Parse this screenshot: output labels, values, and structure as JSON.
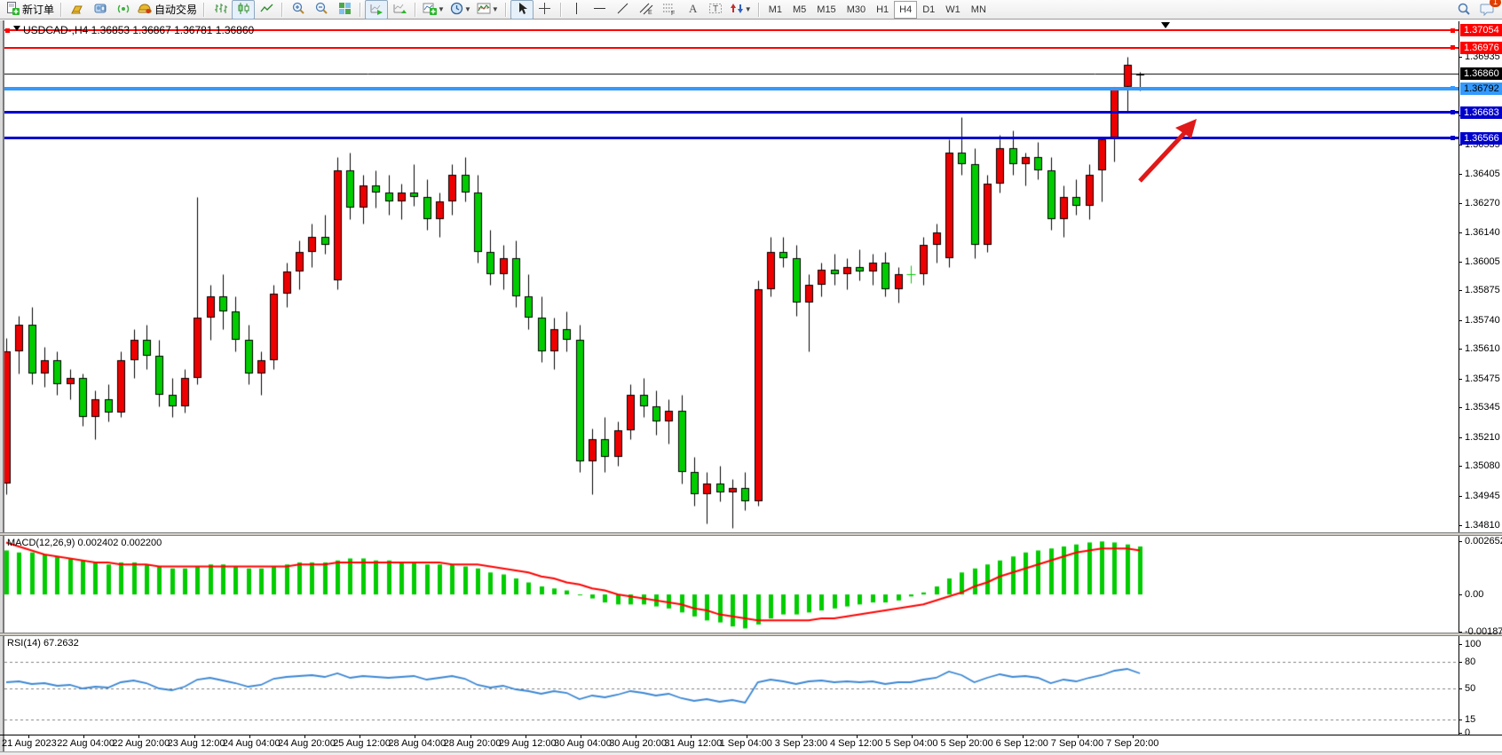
{
  "toolbar": {
    "new_order_label": "新订单",
    "auto_trading_label": "自动交易",
    "notification_count": "1",
    "icons": [
      "new-order-icon",
      "deposit-icon",
      "mailbox-icon",
      "signal-icon",
      "autotrade-icon",
      "bar-chart-icon",
      "candlestick-icon",
      "line-chart-icon",
      "zoom-in-icon",
      "zoom-out-icon",
      "tile-windows-icon",
      "auto-scroll-icon",
      "chart-shift-icon",
      "new-chart-icon",
      "period-icon",
      "template-icon",
      "cursor-icon",
      "crosshair-icon",
      "vertical-line-icon",
      "horizontal-line-icon",
      "trendline-icon",
      "channel-icon",
      "fibonacci-icon",
      "text-icon",
      "label-icon",
      "arrows-icon",
      "search-icon",
      "chat-icon"
    ],
    "timeframes": [
      "M1",
      "M5",
      "M15",
      "M30",
      "H1",
      "H4",
      "D1",
      "W1",
      "MN"
    ],
    "active_timeframe": "H4"
  },
  "chart": {
    "title": "USDCAD-,H4 1.36853 1.36867 1.36781 1.36860",
    "symbol": "USDCAD-",
    "period": "H4",
    "open": "1.36853",
    "high": "1.36867",
    "low": "1.36781",
    "close": "1.36860"
  },
  "macd": {
    "label": "MACD(12,26,9) 0.002402 0.002200",
    "axis_ticks": [
      "0.002652",
      "0.00",
      "-0.001879"
    ]
  },
  "rsi": {
    "label": "RSI(14) 67.2632",
    "axis_ticks": [
      "100",
      "80",
      "50",
      "15",
      "0"
    ],
    "levels": [
      80,
      50,
      15
    ]
  },
  "chart_data": {
    "type": "candlestick",
    "symbol": "USDCAD",
    "timeframe": "H4",
    "colors": {
      "up": "#ee0000",
      "down": "#00cc00",
      "wick": "#000000",
      "bid_line": "#000000",
      "macd_bar": "#00cc00",
      "macd_signal": "#ff0000",
      "rsi_line": "#3a86d4",
      "hline_red": "#ff0000",
      "hline_lightblue": "#3399ff",
      "hline_blue": "#0000cc"
    },
    "main": {
      "ylim": [
        1.34774,
        1.37096
      ],
      "bid": 1.3686,
      "y_ticks": [
        "1.36935",
        "1.36670",
        "1.36535",
        "1.36405",
        "1.36270",
        "1.36140",
        "1.36005",
        "1.35875",
        "1.35740",
        "1.35610",
        "1.35475",
        "1.35345",
        "1.35210",
        "1.35080",
        "1.34945",
        "1.34810"
      ]
    },
    "hlines": [
      {
        "price": 1.37054,
        "label": "1.37054",
        "color": "#ff0000",
        "text": "#ffffff",
        "thickness": 2
      },
      {
        "price": 1.36976,
        "label": "1.36976",
        "color": "#ff0000",
        "text": "#ffffff",
        "thickness": 2
      },
      {
        "price": 1.36792,
        "label": "1.36792",
        "color": "#3399ff",
        "text": "#000000",
        "thickness": 4
      },
      {
        "price": 1.36683,
        "label": "1.36683",
        "color": "#0000cc",
        "text": "#ffffff",
        "thickness": 3
      },
      {
        "price": 1.36566,
        "label": "1.36566",
        "color": "#0000cc",
        "text": "#ffffff",
        "thickness": 3
      }
    ],
    "bid_label": "1.36860",
    "candles": [
      [
        1.35,
        1.3566,
        1.3495,
        1.356
      ],
      [
        1.356,
        1.3576,
        1.355,
        1.3572
      ],
      [
        1.3572,
        1.358,
        1.3545,
        1.355
      ],
      [
        1.355,
        1.3562,
        1.3544,
        1.3556
      ],
      [
        1.3556,
        1.356,
        1.354,
        1.3545
      ],
      [
        1.3545,
        1.3552,
        1.3538,
        1.3548
      ],
      [
        1.3548,
        1.355,
        1.3526,
        1.353
      ],
      [
        1.353,
        1.3542,
        1.352,
        1.3538
      ],
      [
        1.3538,
        1.3545,
        1.3528,
        1.3532
      ],
      [
        1.3532,
        1.356,
        1.353,
        1.3556
      ],
      [
        1.3556,
        1.357,
        1.3548,
        1.3565
      ],
      [
        1.3565,
        1.3572,
        1.3552,
        1.3558
      ],
      [
        1.3558,
        1.3565,
        1.3535,
        1.354
      ],
      [
        1.354,
        1.3548,
        1.353,
        1.3535
      ],
      [
        1.3535,
        1.3552,
        1.3532,
        1.3548
      ],
      [
        1.3548,
        1.363,
        1.3545,
        1.3575
      ],
      [
        1.3575,
        1.359,
        1.3565,
        1.3585
      ],
      [
        1.3585,
        1.3595,
        1.357,
        1.3578
      ],
      [
        1.3578,
        1.3585,
        1.356,
        1.3565
      ],
      [
        1.3565,
        1.3572,
        1.3545,
        1.355
      ],
      [
        1.355,
        1.356,
        1.354,
        1.3556
      ],
      [
        1.3556,
        1.359,
        1.3552,
        1.3586
      ],
      [
        1.3586,
        1.36,
        1.358,
        1.3596
      ],
      [
        1.3596,
        1.361,
        1.3588,
        1.3605
      ],
      [
        1.3605,
        1.3618,
        1.3598,
        1.3612
      ],
      [
        1.3612,
        1.3622,
        1.3604,
        1.3608
      ],
      [
        1.3592,
        1.3648,
        1.3588,
        1.3642
      ],
      [
        1.3642,
        1.365,
        1.362,
        1.3625
      ],
      [
        1.3625,
        1.364,
        1.3618,
        1.3635
      ],
      [
        1.3635,
        1.3642,
        1.3625,
        1.3632
      ],
      [
        1.3632,
        1.364,
        1.3622,
        1.3628
      ],
      [
        1.3628,
        1.3636,
        1.362,
        1.3632
      ],
      [
        1.3632,
        1.3645,
        1.3626,
        1.363
      ],
      [
        1.363,
        1.3638,
        1.3615,
        1.362
      ],
      [
        1.362,
        1.3632,
        1.3612,
        1.3628
      ],
      [
        1.3628,
        1.3645,
        1.3622,
        1.364
      ],
      [
        1.364,
        1.3648,
        1.3628,
        1.3632
      ],
      [
        1.3632,
        1.364,
        1.36,
        1.3605
      ],
      [
        1.3605,
        1.3615,
        1.359,
        1.3595
      ],
      [
        1.3595,
        1.3608,
        1.3588,
        1.3602
      ],
      [
        1.3602,
        1.361,
        1.358,
        1.3585
      ],
      [
        1.3585,
        1.3595,
        1.357,
        1.3575
      ],
      [
        1.3575,
        1.3585,
        1.3555,
        1.356
      ],
      [
        1.356,
        1.3575,
        1.3552,
        1.357
      ],
      [
        1.357,
        1.3578,
        1.356,
        1.3565
      ],
      [
        1.3565,
        1.3572,
        1.3505,
        1.351
      ],
      [
        1.351,
        1.3525,
        1.3495,
        1.352
      ],
      [
        1.352,
        1.353,
        1.3505,
        1.3512
      ],
      [
        1.3512,
        1.3528,
        1.3508,
        1.3524
      ],
      [
        1.3524,
        1.3545,
        1.352,
        1.354
      ],
      [
        1.354,
        1.3548,
        1.353,
        1.3535
      ],
      [
        1.3535,
        1.3542,
        1.3522,
        1.3528
      ],
      [
        1.3528,
        1.3538,
        1.3518,
        1.3533
      ],
      [
        1.3533,
        1.354,
        1.35,
        1.3505
      ],
      [
        1.3505,
        1.3512,
        1.349,
        1.3495
      ],
      [
        1.3495,
        1.3505,
        1.3482,
        1.35
      ],
      [
        1.35,
        1.3508,
        1.3492,
        1.3496
      ],
      [
        1.3496,
        1.3502,
        1.348,
        1.3498
      ],
      [
        1.3498,
        1.3505,
        1.3488,
        1.3492
      ],
      [
        1.3492,
        1.3592,
        1.349,
        1.3588
      ],
      [
        1.3588,
        1.3612,
        1.3585,
        1.3605
      ],
      [
        1.3605,
        1.3612,
        1.3598,
        1.3602
      ],
      [
        1.3602,
        1.3608,
        1.3576,
        1.3582
      ],
      [
        1.3582,
        1.3595,
        1.356,
        1.359
      ],
      [
        1.359,
        1.36,
        1.3585,
        1.3597
      ],
      [
        1.3597,
        1.3604,
        1.359,
        1.3595
      ],
      [
        1.3595,
        1.3602,
        1.3588,
        1.3598
      ],
      [
        1.3598,
        1.3606,
        1.3592,
        1.3596
      ],
      [
        1.3596,
        1.3604,
        1.359,
        1.36
      ],
      [
        1.36,
        1.3605,
        1.3585,
        1.3588
      ],
      [
        1.3588,
        1.3598,
        1.3582,
        1.3595
      ],
      [
        1.3595,
        1.3599,
        1.3591,
        1.3595
      ],
      [
        1.3595,
        1.3612,
        1.359,
        1.3608
      ],
      [
        1.3608,
        1.3618,
        1.36,
        1.3614
      ],
      [
        1.3602,
        1.3656,
        1.3598,
        1.365
      ],
      [
        1.365,
        1.3666,
        1.364,
        1.3645
      ],
      [
        1.3645,
        1.3652,
        1.3602,
        1.3608
      ],
      [
        1.3608,
        1.364,
        1.3605,
        1.3636
      ],
      [
        1.3636,
        1.3658,
        1.3632,
        1.3652
      ],
      [
        1.3652,
        1.366,
        1.364,
        1.3645
      ],
      [
        1.3645,
        1.365,
        1.3635,
        1.3648
      ],
      [
        1.3648,
        1.3655,
        1.3638,
        1.3642
      ],
      [
        1.3642,
        1.3648,
        1.3615,
        1.362
      ],
      [
        1.362,
        1.3635,
        1.3612,
        1.363
      ],
      [
        1.363,
        1.3638,
        1.3622,
        1.3626
      ],
      [
        1.3626,
        1.3645,
        1.362,
        1.364
      ],
      [
        1.3642,
        1.3657,
        1.3628,
        1.3656
      ],
      [
        1.3657,
        1.368,
        1.3646,
        1.3679
      ],
      [
        1.368,
        1.36935,
        1.3668,
        1.369
      ],
      [
        1.36853,
        1.36867,
        1.36781,
        1.3686
      ]
    ],
    "macd": {
      "ylim": [
        -0.00195,
        0.00293
      ],
      "hist": [
        0.0022,
        0.0021,
        0.0021,
        0.002,
        0.0019,
        0.0018,
        0.0017,
        0.0016,
        0.0015,
        0.0016,
        0.0016,
        0.0015,
        0.0014,
        0.0013,
        0.0013,
        0.0014,
        0.0015,
        0.0015,
        0.0014,
        0.0013,
        0.0013,
        0.0014,
        0.0015,
        0.0016,
        0.0016,
        0.0016,
        0.0017,
        0.0018,
        0.0018,
        0.0017,
        0.0017,
        0.0016,
        0.0016,
        0.0015,
        0.0015,
        0.0015,
        0.0014,
        0.0013,
        0.0011,
        0.001,
        0.0008,
        0.0006,
        0.0004,
        0.0003,
        0.0002,
        0.0,
        -0.0002,
        -0.0004,
        -0.0005,
        -0.0005,
        -0.0005,
        -0.0006,
        -0.0007,
        -0.0009,
        -0.0011,
        -0.0013,
        -0.0014,
        -0.0016,
        -0.0017,
        -0.0015,
        -0.0012,
        -0.001,
        -0.001,
        -0.0009,
        -0.0008,
        -0.0007,
        -0.0006,
        -0.0005,
        -0.0004,
        -0.0004,
        -0.0003,
        -0.0001,
        0.0001,
        0.0004,
        0.0008,
        0.0011,
        0.0013,
        0.0015,
        0.0017,
        0.0019,
        0.0021,
        0.0022,
        0.0023,
        0.0024,
        0.0025,
        0.0026,
        0.00265,
        0.0026,
        0.0025,
        0.0024
      ],
      "signal": [
        0.0026,
        0.0024,
        0.0022,
        0.002,
        0.0019,
        0.0018,
        0.0017,
        0.0016,
        0.0016,
        0.0015,
        0.0015,
        0.0015,
        0.0014,
        0.0014,
        0.0014,
        0.0014,
        0.0014,
        0.0014,
        0.0014,
        0.0014,
        0.0014,
        0.0014,
        0.0014,
        0.0015,
        0.0015,
        0.0015,
        0.0016,
        0.0016,
        0.0016,
        0.0016,
        0.0016,
        0.0016,
        0.0016,
        0.0016,
        0.0016,
        0.0015,
        0.0015,
        0.0015,
        0.0014,
        0.0013,
        0.0012,
        0.0011,
        0.0009,
        0.0008,
        0.0006,
        0.0005,
        0.0003,
        0.0002,
        0.0,
        -0.0001,
        -0.0002,
        -0.0003,
        -0.0004,
        -0.0005,
        -0.0007,
        -0.0008,
        -0.001,
        -0.0011,
        -0.0012,
        -0.0013,
        -0.0013,
        -0.0013,
        -0.0013,
        -0.0013,
        -0.0012,
        -0.0012,
        -0.0011,
        -0.001,
        -0.0009,
        -0.0008,
        -0.0007,
        -0.0006,
        -0.0005,
        -0.0003,
        -0.0001,
        0.0001,
        0.0004,
        0.0006,
        0.0009,
        0.0011,
        0.0013,
        0.0015,
        0.0017,
        0.0019,
        0.0021,
        0.0022,
        0.0023,
        0.0023,
        0.0023,
        0.0022
      ]
    },
    "rsi": {
      "ylim": [
        0,
        100
      ],
      "values": [
        57,
        58,
        55,
        56,
        53,
        54,
        50,
        52,
        51,
        57,
        59,
        56,
        50,
        48,
        52,
        60,
        62,
        59,
        56,
        52,
        54,
        61,
        63,
        64,
        65,
        63,
        67,
        62,
        64,
        63,
        62,
        63,
        64,
        60,
        62,
        64,
        61,
        54,
        51,
        53,
        49,
        47,
        44,
        47,
        45,
        38,
        42,
        40,
        43,
        47,
        45,
        42,
        44,
        39,
        36,
        38,
        35,
        37,
        34,
        57,
        60,
        58,
        55,
        58,
        59,
        57,
        58,
        57,
        58,
        55,
        57,
        57,
        60,
        62,
        69,
        65,
        57,
        62,
        66,
        63,
        64,
        62,
        56,
        60,
        58,
        62,
        65,
        70,
        72,
        67
      ]
    },
    "x_labels": [
      "21 Aug 2023",
      "22 Aug 04:00",
      "22 Aug 20:00",
      "23 Aug 12:00",
      "24 Aug 04:00",
      "24 Aug 20:00",
      "25 Aug 12:00",
      "28 Aug 04:00",
      "28 Aug 20:00",
      "29 Aug 12:00",
      "30 Aug 04:00",
      "30 Aug 20:00",
      "31 Aug 12:00",
      "1 Sep 04:00",
      "3 Sep 23:00",
      "4 Sep 12:00",
      "5 Sep 04:00",
      "5 Sep 20:00",
      "6 Sep 12:00",
      "7 Sep 04:00",
      "7 Sep 20:00"
    ]
  }
}
